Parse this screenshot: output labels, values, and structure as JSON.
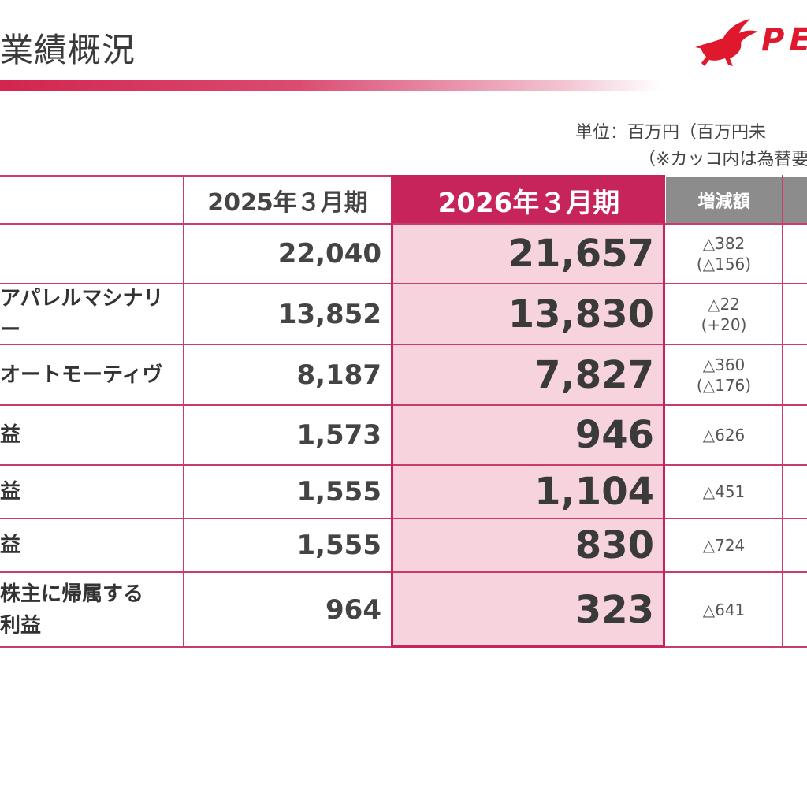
{
  "header": {
    "title": "業績概況",
    "logo_text": "PEG",
    "unit_note": "単位：百万円（百万円未",
    "fx_note": "（※カッコ内は為替要"
  },
  "table": {
    "columns": {
      "fy2025": "2025年３月期",
      "fy2026": "2026年３月期",
      "diff": "増減額"
    },
    "rows": [
      {
        "label": "",
        "fy2025": "22,040",
        "fy2026": "21,657",
        "diff": "△382",
        "diff_fx": "(△156)"
      },
      {
        "label": "アパレルマシナリー",
        "fy2025": "13,852",
        "fy2026": "13,830",
        "diff": "△22",
        "diff_fx": "(+20)"
      },
      {
        "label": "オートモーティヴ",
        "fy2025": "8,187",
        "fy2026": "7,827",
        "diff": "△360",
        "diff_fx": "(△176)"
      },
      {
        "label": "益",
        "fy2025": "1,573",
        "fy2026": "946",
        "diff": "△626",
        "diff_fx": ""
      },
      {
        "label": "益",
        "fy2025": "1,555",
        "fy2026": "1,104",
        "diff": "△451",
        "diff_fx": ""
      },
      {
        "label": "益",
        "fy2025": "1,555",
        "fy2026": "830",
        "diff": "△724",
        "diff_fx": ""
      },
      {
        "label_line1": "株主に帰属する",
        "label_line2": "利益",
        "fy2025": "964",
        "fy2026": "323",
        "diff": "△641",
        "diff_fx": ""
      }
    ]
  },
  "colors": {
    "accent": "#c8245c",
    "highlight_column": "#f6d3dd",
    "header_gray": "#8c8c8c",
    "logo_red": "#e0182d"
  },
  "icons": {
    "logo": "pegasus-icon"
  }
}
